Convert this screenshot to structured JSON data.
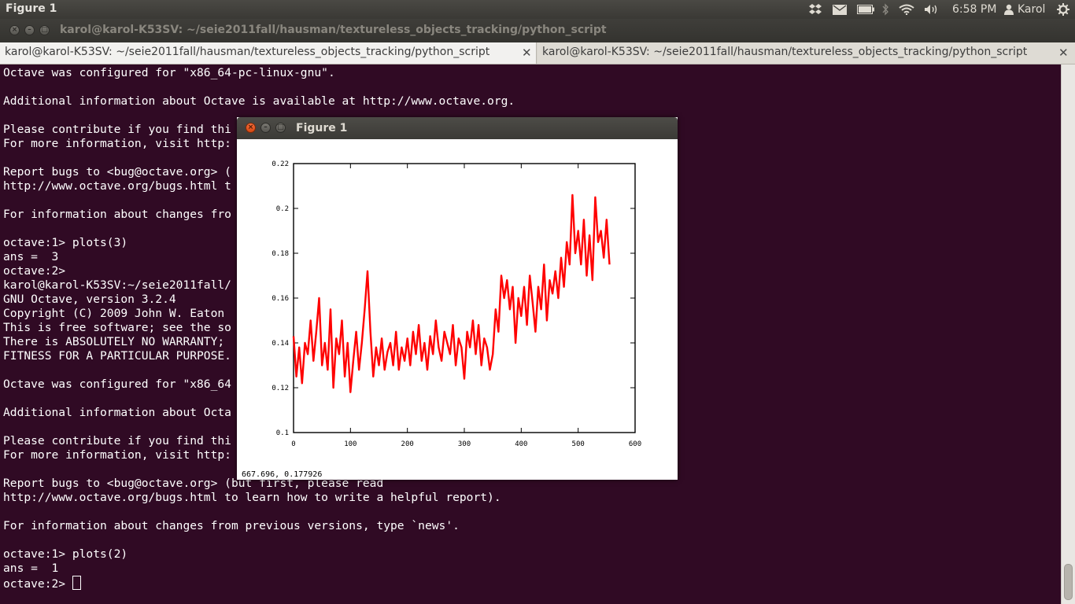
{
  "top_panel": {
    "app_title": "Figure 1",
    "icons": [
      "dropbox-icon",
      "mail-icon",
      "battery-icon",
      "bluetooth-icon",
      "wifi-icon",
      "volume-icon",
      "user-icon",
      "gear-icon"
    ],
    "clock": "6:58 PM",
    "user": "Karol"
  },
  "terminal_window": {
    "title": "karol@karol-K53SV: ~/seie2011fall/hausman/textureless_objects_tracking/python_script",
    "tabs": [
      {
        "label": "karol@karol-K53SV: ~/seie2011fall/hausman/textureless_objects_tracking/python_script"
      },
      {
        "label": "karol@karol-K53SV: ~/seie2011fall/hausman/textureless_objects_tracking/python_script"
      }
    ],
    "lines": [
      "Octave was configured for \"x86_64-pc-linux-gnu\".",
      "",
      "Additional information about Octave is available at http://www.octave.org.",
      "",
      "Please contribute if you find thi",
      "For more information, visit http:",
      "",
      "Report bugs to <bug@octave.org> (",
      "http://www.octave.org/bugs.html t",
      "",
      "For information about changes fro",
      "",
      "octave:1> plots(3)",
      "ans =  3",
      "octave:2>",
      "karol@karol-K53SV:~/seie2011fall/",
      "GNU Octave, version 3.2.4",
      "Copyright (C) 2009 John W. Eaton",
      "This is free software; see the so",
      "There is ABSOLUTELY NO WARRANTY;",
      "FITNESS FOR A PARTICULAR PURPOSE.",
      "",
      "Octave was configured for \"x86_64",
      "",
      "Additional information about Octa",
      "",
      "Please contribute if you find thi",
      "For more information, visit http:",
      "",
      "Report bugs to <bug@octave.org> (but first, please read",
      "http://www.octave.org/bugs.html to learn how to write a helpful report).",
      "",
      "For information about changes from previous versions, type `news'.",
      "",
      "octave:1> plots(2)",
      "ans =  1",
      "octave:2> "
    ]
  },
  "figure_window": {
    "title": "Figure 1",
    "coordinate_readout": "667.696,  0.177926"
  },
  "chart_data": {
    "type": "line",
    "title": "",
    "xlabel": "",
    "ylabel": "",
    "xlim": [
      0,
      600
    ],
    "ylim": [
      0.1,
      0.22
    ],
    "x_ticks": [
      "0",
      "100",
      "200",
      "300",
      "400",
      "500",
      "600"
    ],
    "y_ticks": [
      "0.1",
      "0.12",
      "0.14",
      "0.16",
      "0.18",
      "0.2",
      "0.22"
    ],
    "grid": false,
    "series": [
      {
        "color": "#ff0000",
        "x": [
          0,
          5,
          10,
          15,
          20,
          25,
          30,
          35,
          40,
          45,
          50,
          55,
          60,
          65,
          70,
          75,
          80,
          85,
          90,
          95,
          100,
          105,
          110,
          115,
          120,
          125,
          130,
          135,
          140,
          145,
          150,
          155,
          160,
          165,
          170,
          175,
          180,
          185,
          190,
          195,
          200,
          205,
          210,
          215,
          220,
          225,
          230,
          235,
          240,
          245,
          250,
          255,
          260,
          265,
          270,
          275,
          280,
          285,
          290,
          295,
          300,
          305,
          310,
          315,
          320,
          325,
          330,
          335,
          340,
          345,
          350,
          355,
          360,
          365,
          370,
          375,
          380,
          385,
          390,
          395,
          400,
          405,
          410,
          415,
          420,
          425,
          430,
          435,
          440,
          445,
          450,
          455,
          460,
          465,
          470,
          475,
          480,
          485,
          490,
          495,
          500,
          505,
          510,
          515,
          520,
          525,
          530,
          535,
          540,
          545,
          550,
          555
        ],
        "y": [
          0.143,
          0.125,
          0.138,
          0.122,
          0.14,
          0.135,
          0.15,
          0.132,
          0.145,
          0.16,
          0.13,
          0.14,
          0.128,
          0.155,
          0.12,
          0.142,
          0.135,
          0.15,
          0.125,
          0.14,
          0.118,
          0.132,
          0.145,
          0.128,
          0.14,
          0.155,
          0.172,
          0.145,
          0.125,
          0.138,
          0.13,
          0.142,
          0.128,
          0.136,
          0.14,
          0.13,
          0.145,
          0.128,
          0.138,
          0.132,
          0.142,
          0.13,
          0.145,
          0.135,
          0.148,
          0.132,
          0.14,
          0.128,
          0.143,
          0.135,
          0.15,
          0.138,
          0.132,
          0.145,
          0.14,
          0.135,
          0.148,
          0.13,
          0.142,
          0.138,
          0.124,
          0.145,
          0.138,
          0.15,
          0.135,
          0.148,
          0.13,
          0.142,
          0.138,
          0.128,
          0.135,
          0.155,
          0.145,
          0.17,
          0.16,
          0.168,
          0.155,
          0.165,
          0.14,
          0.16,
          0.152,
          0.165,
          0.148,
          0.17,
          0.158,
          0.145,
          0.165,
          0.155,
          0.175,
          0.15,
          0.168,
          0.162,
          0.172,
          0.16,
          0.178,
          0.165,
          0.185,
          0.175,
          0.206,
          0.18,
          0.19,
          0.175,
          0.195,
          0.17,
          0.188,
          0.168,
          0.205,
          0.185,
          0.19,
          0.178,
          0.195,
          0.175
        ]
      }
    ]
  }
}
